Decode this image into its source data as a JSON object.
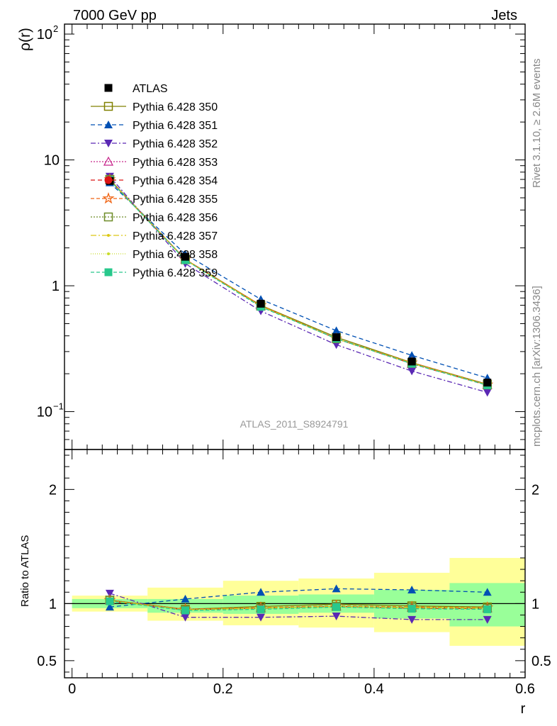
{
  "header": {
    "left": "7000 GeV pp",
    "right": "Jets"
  },
  "side_labels": {
    "rivet": "Rivet 3.1.10, ≥ 2.6M events",
    "mcplots": "mcplots.cern.ch [arXiv:1306.3436]"
  },
  "watermark": "ATLAS_2011_S8924791",
  "colors": {
    "band_inner": "#99ff99",
    "band_outer": "#ffff99"
  },
  "chart_data": [
    {
      "type": "line",
      "panel": "main",
      "ylabel": "ρ(r)",
      "yscale": "log",
      "xlim": [
        -0.01,
        0.6
      ],
      "ylim": [
        0.05,
        120
      ],
      "y_tick_labels": [
        {
          "value": 0.1,
          "base": "10",
          "exp": "−1"
        },
        {
          "value": 1,
          "base": "1",
          "exp": ""
        },
        {
          "value": 10,
          "base": "10",
          "exp": ""
        },
        {
          "value": 100,
          "base": "10",
          "exp": "2"
        }
      ],
      "legend_position": "upper-left",
      "x": [
        0.05,
        0.15,
        0.25,
        0.35,
        0.45,
        0.55
      ],
      "data": {
        "name": "ATLAS",
        "values": [
          6.8,
          1.7,
          0.72,
          0.39,
          0.25,
          0.17
        ]
      },
      "series": [
        {
          "name": "Pythia 6.428 350",
          "color": "#808000",
          "dash": "",
          "marker": "square-open",
          "values": [
            7.0,
            1.62,
            0.7,
            0.39,
            0.245,
            0.165
          ]
        },
        {
          "name": "Pythia 6.428 351",
          "color": "#0050b4",
          "dash": "6,4",
          "marker": "triangle-up",
          "values": [
            6.6,
            1.78,
            0.78,
            0.44,
            0.28,
            0.185
          ]
        },
        {
          "name": "Pythia 6.428 352",
          "color": "#5a28b4",
          "dash": "7,3,2,3",
          "marker": "triangle-down",
          "values": [
            7.4,
            1.5,
            0.63,
            0.34,
            0.21,
            0.142
          ]
        },
        {
          "name": "Pythia 6.428 353",
          "color": "#c8288c",
          "dash": "2,2",
          "marker": "triangle-open",
          "values": [
            7.0,
            1.62,
            0.69,
            0.38,
            0.24,
            0.163
          ]
        },
        {
          "name": "Pythia 6.428 354",
          "color": "#dc1414",
          "dash": "6,4",
          "marker": "circle",
          "values": [
            6.9,
            1.61,
            0.69,
            0.38,
            0.24,
            0.162
          ]
        },
        {
          "name": "Pythia 6.428 355",
          "color": "#f06414",
          "dash": "5,3",
          "marker": "star-open",
          "values": [
            7.0,
            1.62,
            0.7,
            0.38,
            0.245,
            0.164
          ]
        },
        {
          "name": "Pythia 6.428 356",
          "color": "#6e8c28",
          "dash": "2,2",
          "marker": "square-open",
          "values": [
            7.0,
            1.61,
            0.69,
            0.38,
            0.242,
            0.163
          ]
        },
        {
          "name": "Pythia 6.428 357",
          "color": "#dcc814",
          "dash": "8,3,2,3",
          "marker": "dot",
          "values": [
            6.95,
            1.61,
            0.69,
            0.38,
            0.242,
            0.163
          ]
        },
        {
          "name": "Pythia 6.428 358",
          "color": "#c8dc28",
          "dash": "1,2",
          "marker": "dot",
          "values": [
            6.95,
            1.61,
            0.69,
            0.38,
            0.242,
            0.163
          ]
        },
        {
          "name": "Pythia 6.428 359",
          "color": "#28c88c",
          "dash": "5,3",
          "marker": "square",
          "values": [
            6.9,
            1.6,
            0.68,
            0.38,
            0.24,
            0.162
          ]
        }
      ]
    },
    {
      "type": "line",
      "panel": "ratio",
      "xlabel": "r",
      "ylabel": "Ratio to ATLAS",
      "xlim": [
        -0.01,
        0.6
      ],
      "ylim": [
        0.35,
        2.35
      ],
      "x_ticks": [
        0,
        0.2,
        0.4,
        0.6
      ],
      "x_tick_labels": [
        "0",
        "0.2",
        "0.4",
        "0.6"
      ],
      "y_ticks": [
        0.5,
        1,
        2
      ],
      "y_tick_labels": [
        "0.5",
        "1",
        "2"
      ],
      "bins": [
        {
          "lo": 0.0,
          "hi": 0.1,
          "inner": [
            0.96,
            1.04
          ],
          "outer": [
            0.93,
            1.07
          ]
        },
        {
          "lo": 0.1,
          "hi": 0.2,
          "inner": [
            0.92,
            1.04
          ],
          "outer": [
            0.85,
            1.14
          ]
        },
        {
          "lo": 0.2,
          "hi": 0.3,
          "inner": [
            0.91,
            1.07
          ],
          "outer": [
            0.81,
            1.2
          ]
        },
        {
          "lo": 0.3,
          "hi": 0.4,
          "inner": [
            0.92,
            1.08
          ],
          "outer": [
            0.79,
            1.22
          ]
        },
        {
          "lo": 0.4,
          "hi": 0.5,
          "inner": [
            0.87,
            1.12
          ],
          "outer": [
            0.75,
            1.27
          ]
        },
        {
          "lo": 0.5,
          "hi": 0.6,
          "inner": [
            0.8,
            1.18
          ],
          "outer": [
            0.63,
            1.4
          ]
        }
      ],
      "x": [
        0.05,
        0.15,
        0.25,
        0.35,
        0.45,
        0.55
      ],
      "series": [
        {
          "name": "Pythia 6.428 350",
          "color": "#808000",
          "dash": "",
          "marker": "square-open",
          "values": [
            1.03,
            0.95,
            0.975,
            0.995,
            0.98,
            0.97
          ]
        },
        {
          "name": "Pythia 6.428 351",
          "color": "#0050b4",
          "dash": "6,4",
          "marker": "triangle-up",
          "values": [
            0.97,
            1.04,
            1.1,
            1.13,
            1.12,
            1.1
          ]
        },
        {
          "name": "Pythia 6.428 352",
          "color": "#5a28b4",
          "dash": "7,3,2,3",
          "marker": "triangle-down",
          "values": [
            1.09,
            0.88,
            0.88,
            0.89,
            0.86,
            0.86
          ]
        },
        {
          "name": "Pythia 6.428 353",
          "color": "#c8288c",
          "dash": "2,2",
          "marker": "triangle-open",
          "values": [
            1.03,
            0.95,
            0.96,
            0.975,
            0.965,
            0.96
          ]
        },
        {
          "name": "Pythia 6.428 354",
          "color": "#dc1414",
          "dash": "6,4",
          "marker": "circle",
          "values": [
            1.02,
            0.945,
            0.96,
            0.975,
            0.96,
            0.955
          ]
        },
        {
          "name": "Pythia 6.428 355",
          "color": "#f06414",
          "dash": "5,3",
          "marker": "star-open",
          "values": [
            1.03,
            0.95,
            0.965,
            0.98,
            0.97,
            0.965
          ]
        },
        {
          "name": "Pythia 6.428 356",
          "color": "#6e8c28",
          "dash": "2,2",
          "marker": "square-open",
          "values": [
            1.03,
            0.945,
            0.96,
            0.975,
            0.965,
            0.96
          ]
        },
        {
          "name": "Pythia 6.428 357",
          "color": "#dcc814",
          "dash": "8,3,2,3",
          "marker": "dot",
          "values": [
            1.025,
            0.945,
            0.96,
            0.975,
            0.965,
            0.96
          ]
        },
        {
          "name": "Pythia 6.428 358",
          "color": "#c8dc28",
          "dash": "1,2",
          "marker": "dot",
          "values": [
            1.025,
            0.945,
            0.96,
            0.975,
            0.965,
            0.96
          ]
        },
        {
          "name": "Pythia 6.428 359",
          "color": "#28c88c",
          "dash": "5,3",
          "marker": "square",
          "values": [
            1.02,
            0.94,
            0.95,
            0.97,
            0.955,
            0.95
          ]
        }
      ]
    }
  ]
}
